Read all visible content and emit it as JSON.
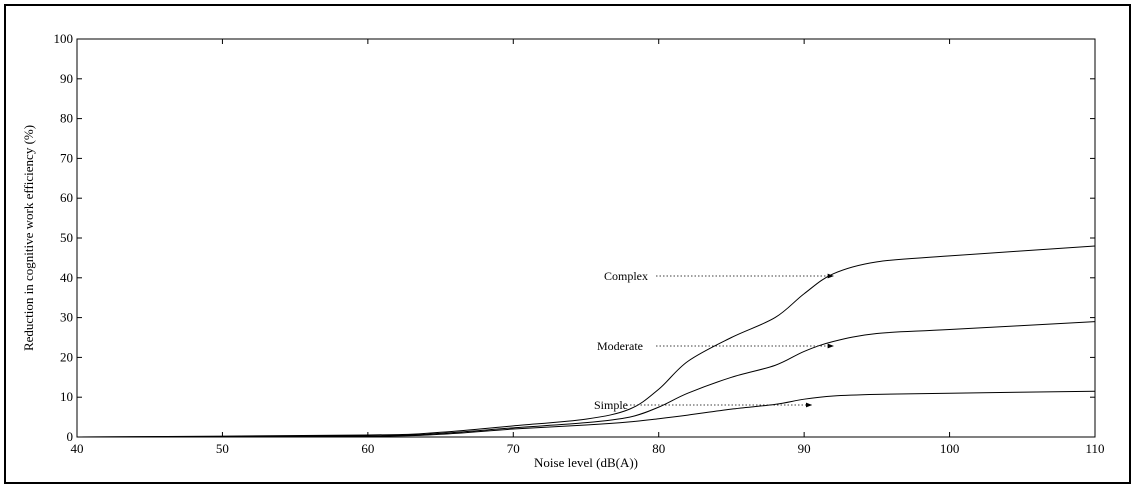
{
  "chart_data": {
    "type": "line",
    "title": "",
    "xlabel": "Noise level (dB(A))",
    "ylabel": "Reduction in cognitive work efficiency (%)",
    "xlim": [
      40,
      110
    ],
    "ylim": [
      0,
      100
    ],
    "x_ticks": [
      40,
      50,
      60,
      70,
      80,
      90,
      100,
      110
    ],
    "y_ticks": [
      0,
      10,
      20,
      30,
      40,
      50,
      60,
      70,
      80,
      90,
      100
    ],
    "grid": false,
    "legend": "none",
    "series": [
      {
        "name": "Complex",
        "x": [
          40,
          60,
          65,
          70,
          75,
          78,
          80,
          82,
          85,
          88,
          90,
          92,
          95,
          100,
          110
        ],
        "y": [
          0,
          0.5,
          1.2,
          2.8,
          4.5,
          7,
          12,
          19,
          25,
          30,
          36,
          41,
          44,
          45.5,
          48
        ]
      },
      {
        "name": "Moderate",
        "x": [
          40,
          60,
          65,
          70,
          75,
          78,
          80,
          82,
          85,
          88,
          90,
          92,
          95,
          100,
          110
        ],
        "y": [
          0,
          0.3,
          0.9,
          2.3,
          3.6,
          5,
          7.5,
          11,
          15,
          18,
          21.5,
          24,
          26,
          27,
          29
        ]
      },
      {
        "name": "Simple",
        "x": [
          40,
          60,
          65,
          70,
          75,
          78,
          80,
          82,
          85,
          88,
          90,
          92,
          95,
          100,
          110
        ],
        "y": [
          0,
          0.2,
          0.7,
          2.0,
          3.0,
          3.8,
          4.6,
          5.5,
          7,
          8.2,
          9.5,
          10.3,
          10.7,
          11,
          11.5
        ]
      }
    ],
    "annotations": [
      {
        "text": "Complex",
        "arrow_to": {
          "x": 92,
          "y": 41.5
        }
      },
      {
        "text": "Moderate",
        "arrow_to": {
          "x": 92,
          "y": 24.5
        }
      },
      {
        "text": "Simple",
        "arrow_to": {
          "x": 90.5,
          "y": 9.5
        }
      }
    ]
  }
}
